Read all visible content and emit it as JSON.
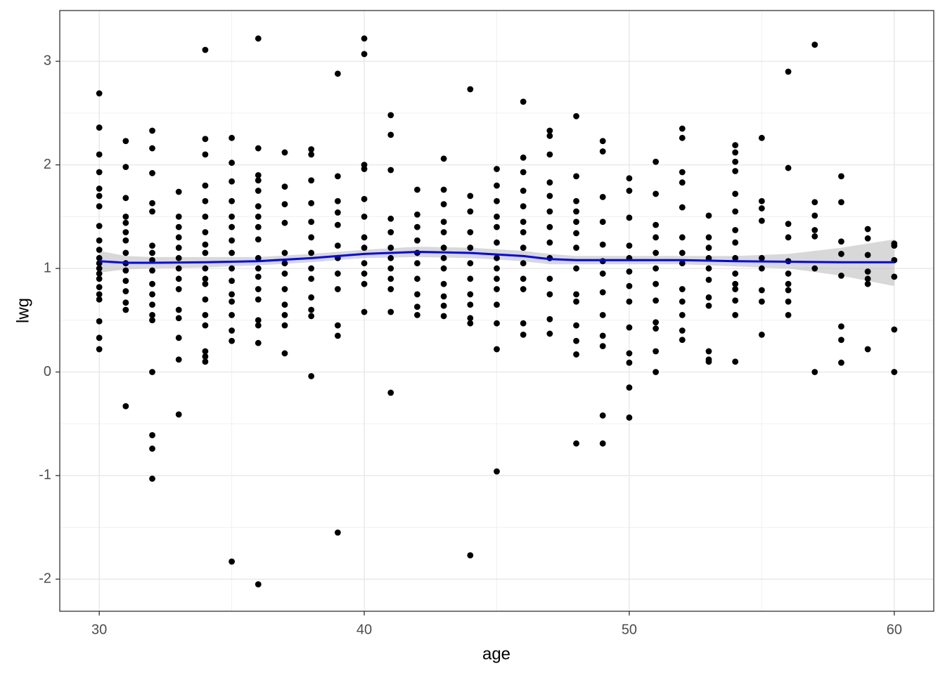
{
  "chart_data": {
    "type": "scatter",
    "x_label": "age",
    "y_label": "lwg",
    "color": "#000000",
    "xlim": [
      28.51,
      61.49
    ],
    "ylim": [
      -2.31,
      3.49
    ],
    "xticks": [
      30,
      40,
      50,
      60
    ],
    "yticks": [
      -2,
      -1,
      0,
      1,
      2,
      3
    ],
    "x_minor_grid": [
      35,
      45,
      55
    ],
    "y_minor_grid": [
      -1.5,
      -0.5,
      0.5,
      1.5,
      2.5
    ],
    "grid": true,
    "groups": [
      {
        "x": 30,
        "values": [
          2.69,
          2.36,
          2.1,
          1.93,
          1.77,
          1.7,
          1.6,
          1.41,
          1.27,
          1.18,
          1.1,
          1.05,
          1.0,
          0.95,
          0.9,
          0.82,
          0.75,
          0.7,
          0.49,
          0.33,
          0.22
        ]
      },
      {
        "x": 31,
        "values": [
          2.23,
          1.98,
          1.68,
          1.5,
          1.44,
          1.35,
          1.27,
          1.15,
          1.05,
          0.98,
          0.88,
          0.78,
          0.67,
          0.6,
          -0.33
        ]
      },
      {
        "x": 32,
        "values": [
          2.33,
          2.16,
          1.92,
          1.63,
          1.55,
          1.22,
          1.15,
          1.08,
          0.98,
          0.85,
          0.75,
          0.65,
          0.55,
          0.5,
          0,
          -0.61,
          -0.74,
          -1.03
        ]
      },
      {
        "x": 33,
        "values": [
          1.74,
          1.5,
          1.4,
          1.3,
          1.2,
          1.1,
          1.0,
          0.9,
          0.8,
          0.6,
          0.52,
          0.33,
          0.12,
          -0.41
        ]
      },
      {
        "x": 34,
        "values": [
          3.11,
          2.25,
          2.1,
          1.8,
          1.65,
          1.5,
          1.35,
          1.23,
          1.15,
          1.0,
          0.9,
          0.85,
          0.7,
          0.55,
          0.45,
          0.2,
          0.15,
          0.1
        ]
      },
      {
        "x": 35,
        "values": [
          2.26,
          2.02,
          1.84,
          1.65,
          1.5,
          1.4,
          1.27,
          1.15,
          1.0,
          0.88,
          0.75,
          0.68,
          0.55,
          0.4,
          0.3,
          -1.83
        ]
      },
      {
        "x": 36,
        "values": [
          3.22,
          2.16,
          1.9,
          1.85,
          1.75,
          1.6,
          1.5,
          1.4,
          1.28,
          1.1,
          1.0,
          0.92,
          0.8,
          0.7,
          0.5,
          0.45,
          0.28,
          -2.05
        ]
      },
      {
        "x": 37,
        "values": [
          2.12,
          1.79,
          1.62,
          1.44,
          1.15,
          1.05,
          0.95,
          0.8,
          0.65,
          0.55,
          0.45,
          0.18
        ]
      },
      {
        "x": 38,
        "values": [
          2.15,
          2.1,
          1.85,
          1.63,
          1.45,
          1.3,
          1.15,
          1.0,
          0.9,
          0.72,
          0.6,
          0.54,
          -0.04
        ]
      },
      {
        "x": 39,
        "values": [
          2.88,
          1.89,
          1.65,
          1.54,
          1.42,
          1.22,
          1.1,
          0.95,
          0.8,
          0.45,
          0.35,
          -1.55
        ]
      },
      {
        "x": 40,
        "values": [
          3.22,
          3.07,
          2.0,
          1.96,
          1.67,
          1.5,
          1.3,
          1.2,
          1.05,
          0.95,
          0.85,
          0.58
        ]
      },
      {
        "x": 41,
        "values": [
          2.48,
          2.29,
          1.95,
          1.48,
          1.35,
          1.2,
          1.1,
          1.0,
          0.9,
          0.8,
          0.58,
          -0.2
        ]
      },
      {
        "x": 42,
        "values": [
          1.76,
          1.52,
          1.4,
          1.27,
          1.15,
          1.05,
          0.9,
          0.75,
          0.63,
          0.55
        ]
      },
      {
        "x": 43,
        "values": [
          2.06,
          1.76,
          1.62,
          1.45,
          1.35,
          1.2,
          1.1,
          1.0,
          0.85,
          0.73,
          0.64,
          0.54
        ]
      },
      {
        "x": 44,
        "values": [
          2.73,
          1.7,
          1.55,
          1.35,
          1.2,
          1.05,
          0.9,
          0.75,
          0.65,
          0.52,
          0.47,
          -1.77
        ]
      },
      {
        "x": 45,
        "values": [
          1.96,
          1.8,
          1.65,
          1.5,
          1.4,
          1.25,
          1.1,
          1.0,
          0.9,
          0.8,
          0.65,
          0.47,
          0.22,
          -0.96
        ]
      },
      {
        "x": 46,
        "values": [
          2.61,
          2.07,
          1.93,
          1.75,
          1.6,
          1.45,
          1.35,
          1.2,
          1.05,
          0.9,
          0.8,
          0.47,
          0.36
        ]
      },
      {
        "x": 47,
        "values": [
          2.33,
          2.28,
          2.1,
          1.83,
          1.7,
          1.55,
          1.4,
          1.25,
          1.1,
          0.9,
          0.75,
          0.51,
          0.37
        ]
      },
      {
        "x": 48,
        "values": [
          2.47,
          1.89,
          1.65,
          1.55,
          1.45,
          1.34,
          1.2,
          1.0,
          0.75,
          0.68,
          0.45,
          0.3,
          0.17,
          -0.69
        ]
      },
      {
        "x": 49,
        "values": [
          2.23,
          2.13,
          1.69,
          1.45,
          1.23,
          1.07,
          0.95,
          0.77,
          0.55,
          0.35,
          0.25,
          -0.42,
          -0.69
        ]
      },
      {
        "x": 50,
        "values": [
          1.87,
          1.75,
          1.49,
          1.22,
          1.1,
          0.97,
          0.83,
          0.68,
          0.43,
          0.18,
          0.09,
          -0.15,
          -0.44
        ]
      },
      {
        "x": 51,
        "values": [
          2.03,
          1.72,
          1.42,
          1.3,
          1.15,
          1.0,
          0.85,
          0.69,
          0.48,
          0.42,
          0.2,
          0
        ]
      },
      {
        "x": 52,
        "values": [
          2.35,
          2.26,
          1.93,
          1.83,
          1.59,
          1.3,
          1.15,
          1.05,
          0.8,
          0.68,
          0.55,
          0.4,
          0.31
        ]
      },
      {
        "x": 53,
        "values": [
          1.51,
          1.3,
          1.2,
          1.1,
          1.0,
          0.89,
          0.72,
          0.64,
          0.2,
          0.12,
          0.1
        ]
      },
      {
        "x": 54,
        "values": [
          2.19,
          2.12,
          2.03,
          1.94,
          1.72,
          1.55,
          1.37,
          1.25,
          1.1,
          0.95,
          0.85,
          0.8,
          0.69,
          0.55,
          0.1
        ]
      },
      {
        "x": 55,
        "values": [
          2.26,
          1.65,
          1.58,
          1.46,
          1.1,
          1.0,
          0.79,
          0.68,
          0.36
        ]
      },
      {
        "x": 56,
        "values": [
          2.9,
          1.97,
          1.43,
          1.3,
          1.07,
          0.95,
          0.85,
          0.79,
          0.68,
          0.55
        ]
      },
      {
        "x": 57,
        "values": [
          3.16,
          1.64,
          1.51,
          1.37,
          1.31,
          1.0,
          0
        ]
      },
      {
        "x": 58,
        "values": [
          1.89,
          1.64,
          1.26,
          1.14,
          0.93,
          0.44,
          0.31,
          0.09
        ]
      },
      {
        "x": 59,
        "values": [
          1.38,
          1.29,
          1.13,
          0.97,
          0.9,
          0.85,
          0.22
        ]
      },
      {
        "x": 60,
        "values": [
          1.24,
          1.22,
          1.08,
          0.92,
          0.41,
          0
        ]
      }
    ],
    "smooth": {
      "color": "#0000ff",
      "band_color": "#bebebe",
      "x": [
        30,
        31,
        32,
        34,
        36,
        38,
        40,
        42,
        44,
        46,
        47,
        48,
        50,
        52,
        54,
        56,
        58,
        60
      ],
      "values": [
        1.07,
        1.055,
        1.055,
        1.06,
        1.07,
        1.1,
        1.14,
        1.16,
        1.15,
        1.12,
        1.09,
        1.08,
        1.08,
        1.08,
        1.07,
        1.065,
        1.06,
        1.06
      ],
      "lower": [
        0.96,
        0.99,
        1.0,
        1.01,
        1.03,
        1.06,
        1.1,
        1.11,
        1.1,
        1.07,
        1.04,
        1.04,
        1.04,
        1.04,
        1.02,
        1.0,
        0.93,
        0.83
      ],
      "upper": [
        1.17,
        1.12,
        1.11,
        1.11,
        1.11,
        1.14,
        1.18,
        1.21,
        1.2,
        1.17,
        1.14,
        1.12,
        1.12,
        1.12,
        1.12,
        1.14,
        1.2,
        1.28
      ]
    }
  }
}
